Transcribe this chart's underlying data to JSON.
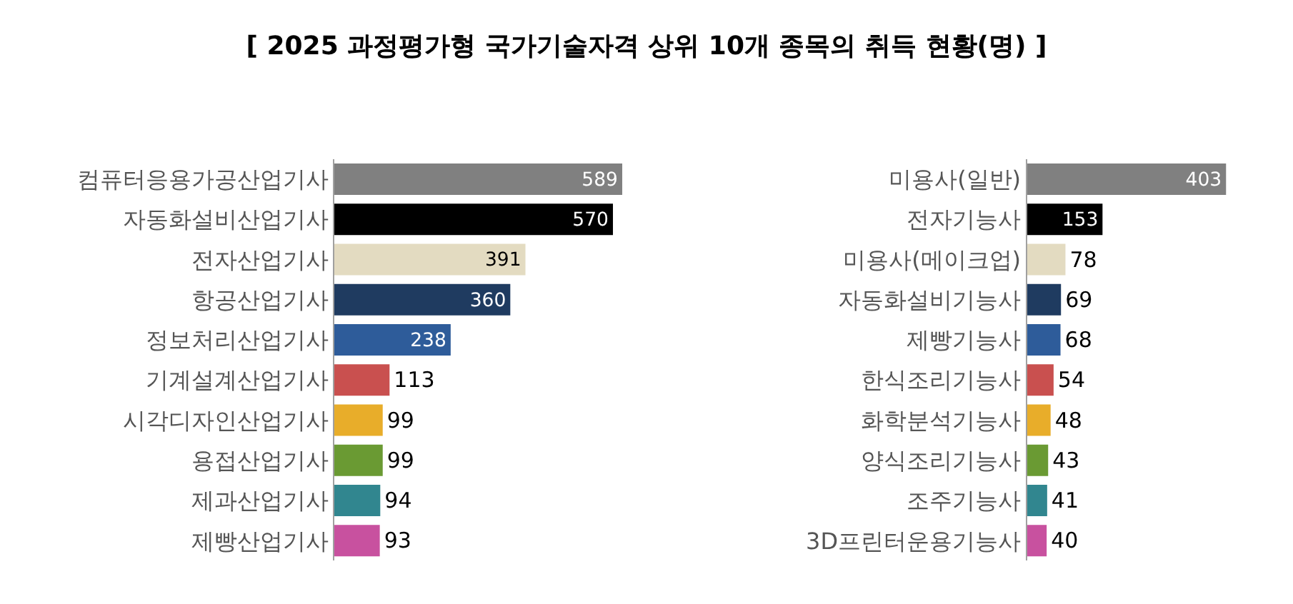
{
  "chart_data": [
    {
      "type": "bar",
      "orientation": "horizontal",
      "title": "[ 2025 과정평가형 국가기술자격 상위 10개 종목의 취득 현황(명) ]",
      "categories": [
        "컴퓨터응용가공산업기사",
        "자동화설비산업기사",
        "전자산업기사",
        "항공산업기사",
        "정보처리산업기사",
        "기계설계산업기사",
        "시각디자인산업기사",
        "용접산업기사",
        "제과산업기사",
        "제빵산업기사"
      ],
      "values": [
        589,
        570,
        391,
        360,
        238,
        113,
        99,
        99,
        94,
        93
      ],
      "colors": [
        "#808080",
        "#000000",
        "#e3dbc1",
        "#1f3b60",
        "#2e5c9a",
        "#c9504f",
        "#e8ad2a",
        "#6a9a33",
        "#31868f",
        "#c8519f"
      ],
      "data_labels": true
    },
    {
      "type": "bar",
      "orientation": "horizontal",
      "categories": [
        "미용사(일반)",
        "전자기능사",
        "미용사(메이크업)",
        "자동화설비기능사",
        "제빵기능사",
        "한식조리기능사",
        "화학분석기능사",
        "양식조리기능사",
        "조주기능사",
        "3D프린터운용기능사"
      ],
      "values": [
        403,
        153,
        78,
        69,
        68,
        54,
        48,
        43,
        41,
        40
      ],
      "colors": [
        "#808080",
        "#000000",
        "#e3dbc1",
        "#1f3b60",
        "#2e5c9a",
        "#c9504f",
        "#e8ad2a",
        "#6a9a33",
        "#31868f",
        "#c8519f"
      ],
      "data_labels": true
    }
  ]
}
